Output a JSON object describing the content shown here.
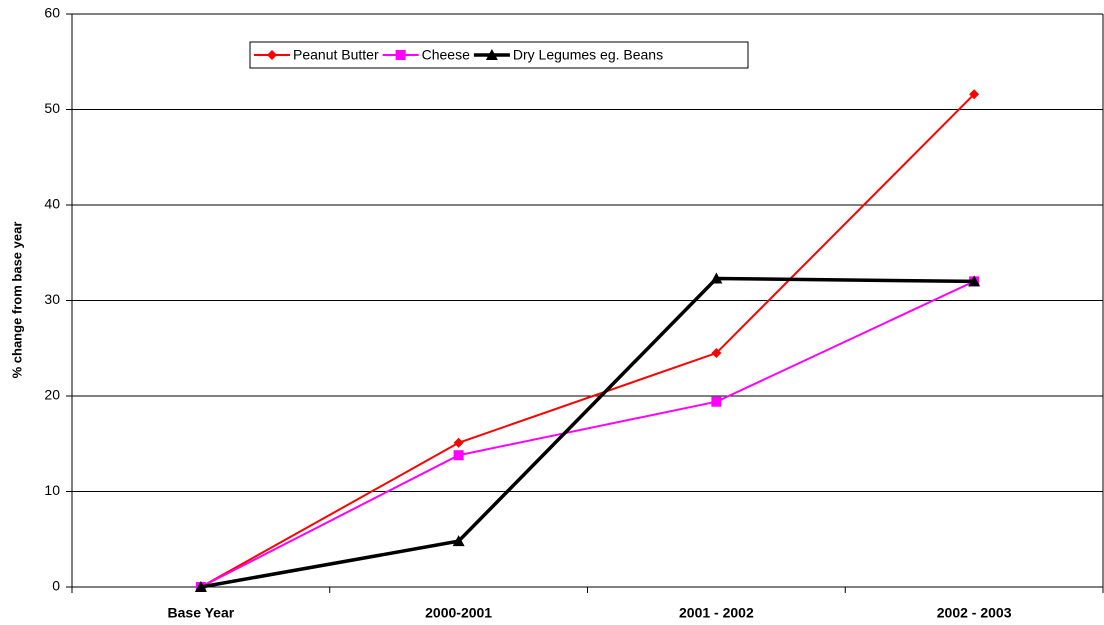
{
  "chart_data": {
    "type": "line",
    "categories": [
      "Base Year",
      "2000-2001",
      "2001 - 2002",
      "2002 - 2003"
    ],
    "series": [
      {
        "name": "Peanut Butter",
        "color": "#ff0000",
        "marker": "diamond",
        "values": [
          0,
          15.1,
          24.5,
          51.6
        ]
      },
      {
        "name": "Cheese",
        "color": "#ff00ff",
        "marker": "square",
        "values": [
          0,
          13.8,
          19.4,
          32
        ]
      },
      {
        "name": "Dry Legumes eg. Beans",
        "color": "#000000",
        "marker": "triangle",
        "values": [
          0,
          4.8,
          32.3,
          32
        ]
      }
    ],
    "y_label": "% change from base year",
    "ylim": [
      0,
      60
    ],
    "yticks": [
      0,
      10,
      20,
      30,
      40,
      50,
      60
    ],
    "grid": true
  }
}
